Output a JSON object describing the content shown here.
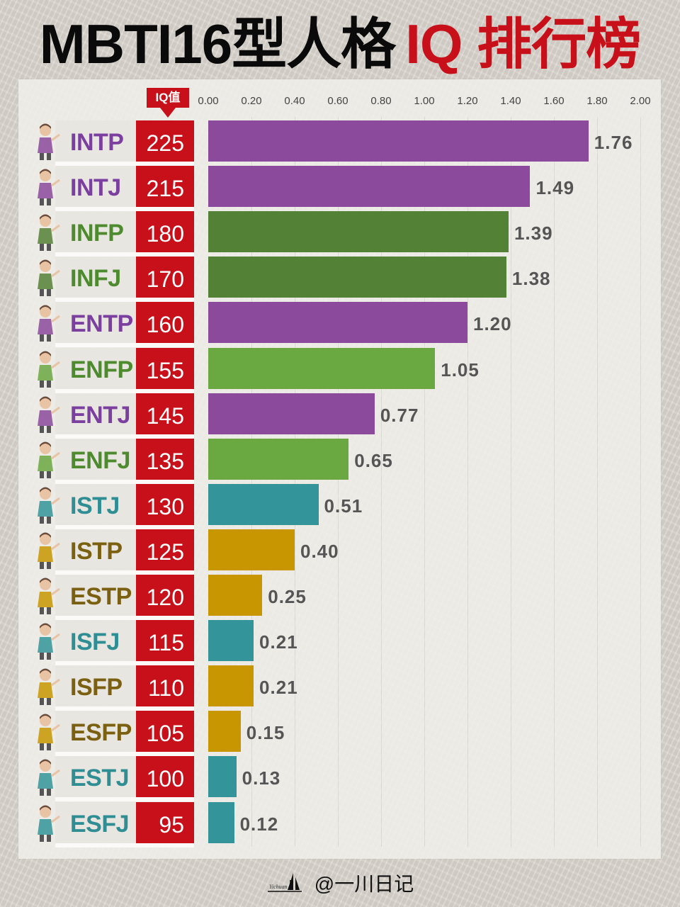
{
  "title": {
    "black": "MBTI16型人格",
    "red": "IQ 排行榜"
  },
  "iq_header": "IQ值",
  "footer": {
    "handle": "@一川日记",
    "logo_icon": "boat-signature-icon"
  },
  "colors": {
    "analyst": "#8B4A9C",
    "analyst_text": "#7B3FA0",
    "diplomat_dark": "#538135",
    "diplomat_light": "#6AA842",
    "diplomat_text": "#4E8A2E",
    "sentinel": "#339599",
    "sentinel_text": "#2E8E94",
    "explorer": "#C89600",
    "explorer_text": "#7A6010",
    "iq_red": "#C8101A"
  },
  "chart_data": {
    "type": "bar",
    "orientation": "horizontal",
    "title": "MBTI16型人格 IQ 排行榜",
    "xlabel": "",
    "ylabel": "",
    "xlim": [
      0,
      2.0
    ],
    "x_ticks": [
      "0.00",
      "0.20",
      "0.40",
      "0.60",
      "0.80",
      "1.00",
      "1.20",
      "1.40",
      "1.60",
      "1.80",
      "2.00"
    ],
    "grid": true,
    "categories": [
      "INTP",
      "INTJ",
      "INFP",
      "INFJ",
      "ENTP",
      "ENFP",
      "ENTJ",
      "ENFJ",
      "ISTJ",
      "ISTP",
      "ESTP",
      "ISFJ",
      "ISFP",
      "ESFP",
      "ESTJ",
      "ESFJ"
    ],
    "iq": [
      225,
      215,
      180,
      170,
      160,
      155,
      145,
      135,
      130,
      125,
      120,
      115,
      110,
      105,
      100,
      95
    ],
    "values": [
      1.76,
      1.49,
      1.39,
      1.38,
      1.2,
      1.05,
      0.77,
      0.65,
      0.51,
      0.4,
      0.25,
      0.21,
      0.21,
      0.15,
      0.13,
      0.12
    ],
    "value_labels": [
      "1.76",
      "1.49",
      "1.39",
      "1.38",
      "1.20",
      "1.05",
      "0.77",
      "0.65",
      "0.51",
      "0.40",
      "0.25",
      "0.21",
      "0.21",
      "0.15",
      "0.13",
      "0.12"
    ],
    "bar_colors": [
      "#8B4A9C",
      "#8B4A9C",
      "#538135",
      "#538135",
      "#8B4A9C",
      "#6AA842",
      "#8B4A9C",
      "#6AA842",
      "#339599",
      "#C89600",
      "#C89600",
      "#339599",
      "#C89600",
      "#C89600",
      "#339599",
      "#339599"
    ],
    "label_colors": [
      "#7B3FA0",
      "#7B3FA0",
      "#4E8A2E",
      "#4E8A2E",
      "#7B3FA0",
      "#4E8A2E",
      "#7B3FA0",
      "#4E8A2E",
      "#2E8E94",
      "#7A6010",
      "#7A6010",
      "#2E8E94",
      "#7A6010",
      "#7A6010",
      "#2E8E94",
      "#2E8E94"
    ],
    "avatar_icons": [
      "scientist-avatar-icon",
      "professor-avatar-icon",
      "fairy-avatar-icon",
      "wizard-avatar-icon",
      "speaker-avatar-icon",
      "elf-avatar-icon",
      "teacher-avatar-icon",
      "knight-avatar-icon",
      "inspector-avatar-icon",
      "mechanic-avatar-icon",
      "worker-avatar-icon",
      "nurse-avatar-icon",
      "artist-avatar-icon",
      "dancer-avatar-icon",
      "engineer-avatar-icon",
      "chef-avatar-icon"
    ]
  }
}
